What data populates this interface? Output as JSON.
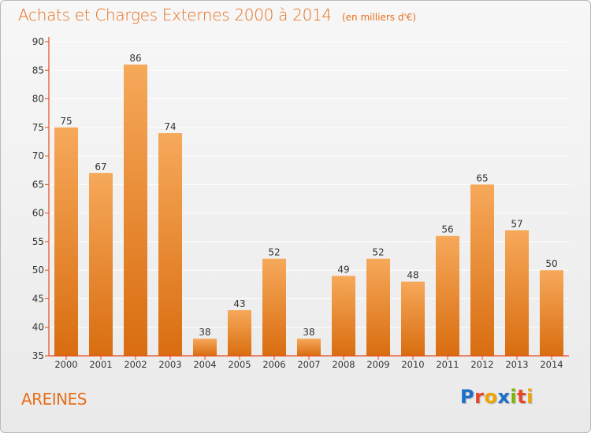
{
  "header": {
    "title": "Achats et Charges Externes 2000 à 2014",
    "unit_note": "(en milliers d'€)"
  },
  "footer": {
    "commune": "AREINES",
    "logo_text": "Proxiti",
    "logo_colors": [
      "#1a6fc9",
      "#e8442a",
      "#f0a400",
      "#1a6fc9",
      "#7ab800",
      "#e8442a",
      "#f0a400"
    ]
  },
  "colors": {
    "accent": "#e76e1a",
    "bar_top": "#f6a95a",
    "bar_bottom": "#d96d10",
    "axis": "#e74c1a",
    "grid": "#ffffff"
  },
  "chart_data": {
    "type": "bar",
    "categories": [
      "2000",
      "2001",
      "2002",
      "2003",
      "2004",
      "2005",
      "2006",
      "2007",
      "2008",
      "2009",
      "2010",
      "2011",
      "2012",
      "2013",
      "2014"
    ],
    "values": [
      75,
      67,
      86,
      74,
      38,
      43,
      52,
      38,
      49,
      52,
      48,
      56,
      65,
      57,
      50
    ],
    "ylim": [
      35,
      90
    ],
    "yticks": [
      35,
      40,
      45,
      50,
      55,
      60,
      65,
      70,
      75,
      80,
      85,
      90
    ],
    "data_labels": true,
    "grid": "horizontal"
  }
}
